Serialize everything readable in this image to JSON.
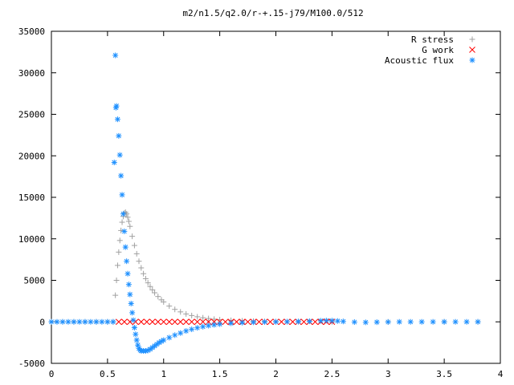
{
  "chart_data": {
    "type": "scatter",
    "title": "m2/n1.5/q2.0/r-+.15-j79/M100.0/512",
    "xlabel": "",
    "ylabel": "",
    "xlim": [
      0,
      4
    ],
    "ylim": [
      -5000,
      35000
    ],
    "xticks": [
      0,
      0.5,
      1,
      1.5,
      2,
      2.5,
      3,
      3.5,
      4
    ],
    "xtick_labels": [
      "0",
      "0.5",
      "1",
      "1.5",
      "2",
      "2.5",
      "3",
      "3.5",
      "4"
    ],
    "yticks": [
      -5000,
      0,
      5000,
      10000,
      15000,
      20000,
      25000,
      30000,
      35000
    ],
    "ytick_labels": [
      "-5000",
      "0",
      "5000",
      "10000",
      "15000",
      "20000",
      "25000",
      "30000",
      "35000"
    ],
    "grid": false,
    "legend_position": "top-right",
    "series": [
      {
        "name": "R stress",
        "marker": "plus",
        "color": "#a0a0a0",
        "points": [
          [
            0.0,
            0
          ],
          [
            0.1,
            0
          ],
          [
            0.2,
            0
          ],
          [
            0.3,
            0
          ],
          [
            0.4,
            0
          ],
          [
            0.5,
            0
          ],
          [
            0.55,
            0
          ],
          [
            0.57,
            3200
          ],
          [
            0.58,
            5000
          ],
          [
            0.59,
            6800
          ],
          [
            0.6,
            8400
          ],
          [
            0.61,
            9800
          ],
          [
            0.62,
            11000
          ],
          [
            0.63,
            12000
          ],
          [
            0.64,
            12700
          ],
          [
            0.65,
            13100
          ],
          [
            0.66,
            13200
          ],
          [
            0.67,
            13000
          ],
          [
            0.68,
            12600
          ],
          [
            0.69,
            12100
          ],
          [
            0.7,
            11500
          ],
          [
            0.72,
            10300
          ],
          [
            0.74,
            9200
          ],
          [
            0.76,
            8200
          ],
          [
            0.78,
            7300
          ],
          [
            0.8,
            6500
          ],
          [
            0.82,
            5800
          ],
          [
            0.84,
            5200
          ],
          [
            0.86,
            4700
          ],
          [
            0.88,
            4250
          ],
          [
            0.9,
            3850
          ],
          [
            0.92,
            3500
          ],
          [
            0.95,
            3050
          ],
          [
            0.98,
            2650
          ],
          [
            1.0,
            2400
          ],
          [
            1.05,
            1900
          ],
          [
            1.1,
            1500
          ],
          [
            1.15,
            1200
          ],
          [
            1.2,
            950
          ],
          [
            1.25,
            760
          ],
          [
            1.3,
            610
          ],
          [
            1.35,
            490
          ],
          [
            1.4,
            400
          ],
          [
            1.45,
            320
          ],
          [
            1.5,
            260
          ],
          [
            1.6,
            180
          ],
          [
            1.7,
            120
          ],
          [
            1.8,
            80
          ],
          [
            1.9,
            50
          ],
          [
            2.0,
            30
          ],
          [
            2.2,
            10
          ],
          [
            2.5,
            0
          ],
          [
            3.0,
            0
          ],
          [
            3.5,
            0
          ],
          [
            3.8,
            0
          ]
        ]
      },
      {
        "name": "G work",
        "marker": "cross",
        "color": "#ff0000",
        "points": [
          [
            0.6,
            0
          ],
          [
            0.65,
            0
          ],
          [
            0.7,
            0
          ],
          [
            0.75,
            0
          ],
          [
            0.8,
            0
          ],
          [
            0.85,
            0
          ],
          [
            0.9,
            0
          ],
          [
            0.95,
            0
          ],
          [
            1.0,
            0
          ],
          [
            1.05,
            0
          ],
          [
            1.1,
            0
          ],
          [
            1.15,
            0
          ],
          [
            1.2,
            0
          ],
          [
            1.25,
            0
          ],
          [
            1.3,
            0
          ],
          [
            1.35,
            0
          ],
          [
            1.4,
            0
          ],
          [
            1.45,
            0
          ],
          [
            1.5,
            0
          ],
          [
            1.55,
            0
          ],
          [
            1.6,
            0
          ],
          [
            1.65,
            0
          ],
          [
            1.7,
            0
          ],
          [
            1.75,
            0
          ],
          [
            1.8,
            0
          ],
          [
            1.85,
            0
          ],
          [
            1.9,
            0
          ],
          [
            1.95,
            0
          ],
          [
            2.0,
            0
          ],
          [
            2.05,
            0
          ],
          [
            2.1,
            0
          ],
          [
            2.15,
            0
          ],
          [
            2.2,
            0
          ],
          [
            2.25,
            0
          ],
          [
            2.3,
            0
          ],
          [
            2.35,
            0
          ],
          [
            2.4,
            0
          ],
          [
            2.45,
            0
          ],
          [
            2.5,
            0
          ]
        ]
      },
      {
        "name": "Acoustic flux",
        "marker": "star",
        "color": "#1e90ff",
        "points": [
          [
            0.0,
            0
          ],
          [
            0.05,
            0
          ],
          [
            0.1,
            0
          ],
          [
            0.15,
            0
          ],
          [
            0.2,
            0
          ],
          [
            0.25,
            0
          ],
          [
            0.3,
            0
          ],
          [
            0.35,
            0
          ],
          [
            0.4,
            0
          ],
          [
            0.45,
            0
          ],
          [
            0.5,
            0
          ],
          [
            0.55,
            0
          ],
          [
            0.56,
            19200
          ],
          [
            0.57,
            32100
          ],
          [
            0.575,
            25800
          ],
          [
            0.58,
            26000
          ],
          [
            0.59,
            24400
          ],
          [
            0.6,
            22400
          ],
          [
            0.61,
            20100
          ],
          [
            0.62,
            17600
          ],
          [
            0.63,
            15300
          ],
          [
            0.64,
            13000
          ],
          [
            0.65,
            10900
          ],
          [
            0.66,
            9000
          ],
          [
            0.67,
            7300
          ],
          [
            0.68,
            5800
          ],
          [
            0.69,
            4500
          ],
          [
            0.7,
            3300
          ],
          [
            0.71,
            2200
          ],
          [
            0.72,
            1100
          ],
          [
            0.73,
            200
          ],
          [
            0.74,
            -700
          ],
          [
            0.75,
            -1500
          ],
          [
            0.76,
            -2200
          ],
          [
            0.77,
            -2800
          ],
          [
            0.78,
            -3200
          ],
          [
            0.79,
            -3400
          ],
          [
            0.8,
            -3500
          ],
          [
            0.82,
            -3500
          ],
          [
            0.84,
            -3500
          ],
          [
            0.86,
            -3450
          ],
          [
            0.88,
            -3300
          ],
          [
            0.9,
            -3100
          ],
          [
            0.92,
            -2900
          ],
          [
            0.94,
            -2700
          ],
          [
            0.96,
            -2500
          ],
          [
            0.98,
            -2350
          ],
          [
            1.0,
            -2200
          ],
          [
            1.05,
            -1900
          ],
          [
            1.1,
            -1600
          ],
          [
            1.15,
            -1350
          ],
          [
            1.2,
            -1100
          ],
          [
            1.25,
            -900
          ],
          [
            1.3,
            -720
          ],
          [
            1.35,
            -580
          ],
          [
            1.4,
            -460
          ],
          [
            1.45,
            -360
          ],
          [
            1.5,
            -280
          ],
          [
            1.6,
            -170
          ],
          [
            1.7,
            -100
          ],
          [
            1.8,
            -50
          ],
          [
            1.9,
            -10
          ],
          [
            2.0,
            0
          ],
          [
            2.1,
            20
          ],
          [
            2.2,
            40
          ],
          [
            2.3,
            70
          ],
          [
            2.4,
            120
          ],
          [
            2.45,
            150
          ],
          [
            2.5,
            140
          ],
          [
            2.55,
            100
          ],
          [
            2.6,
            50
          ],
          [
            2.7,
            -30
          ],
          [
            2.8,
            -60
          ],
          [
            2.9,
            -40
          ],
          [
            3.0,
            -20
          ],
          [
            3.1,
            0
          ],
          [
            3.2,
            0
          ],
          [
            3.3,
            0
          ],
          [
            3.4,
            0
          ],
          [
            3.5,
            0
          ],
          [
            3.6,
            0
          ],
          [
            3.7,
            0
          ],
          [
            3.8,
            0
          ]
        ]
      }
    ]
  }
}
